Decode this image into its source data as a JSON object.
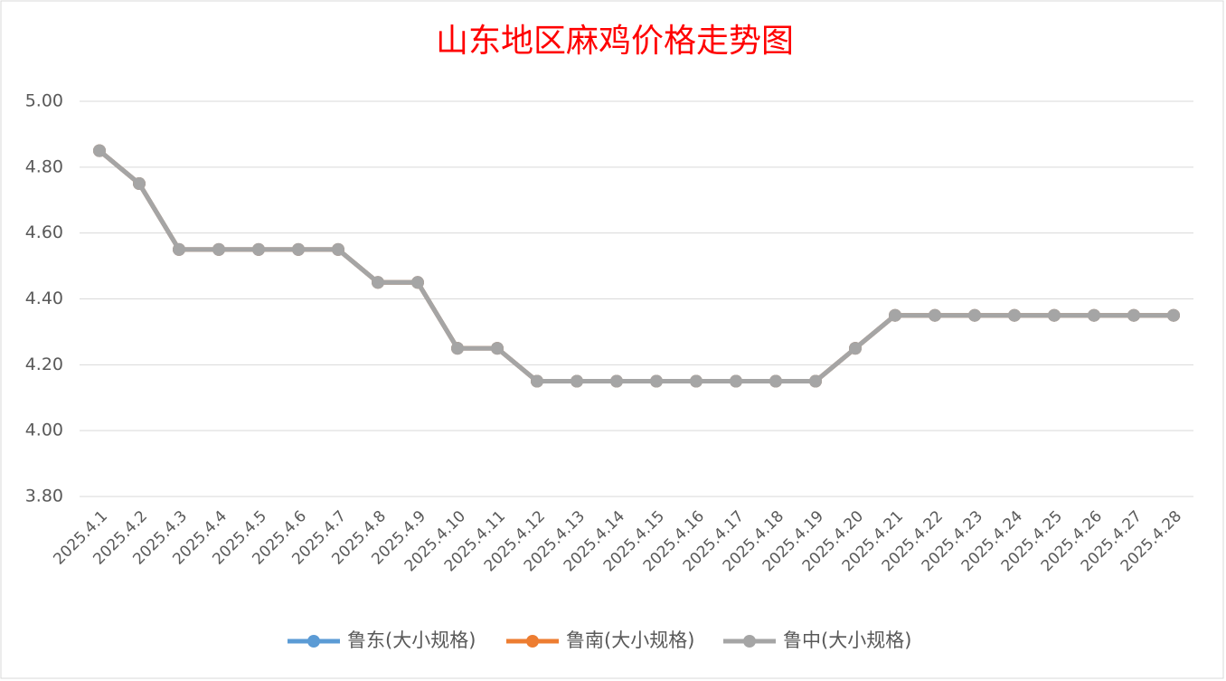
{
  "chart_data": {
    "type": "line",
    "title": "山东地区麻鸡价格走势图",
    "categories": [
      "2025.4.1",
      "2025.4.2",
      "2025.4.3",
      "2025.4.4",
      "2025.4.5",
      "2025.4.6",
      "2025.4.7",
      "2025.4.8",
      "2025.4.9",
      "2025.4.10",
      "2025.4.11",
      "2025.4.12",
      "2025.4.13",
      "2025.4.14",
      "2025.4.15",
      "2025.4.16",
      "2025.4.17",
      "2025.4.18",
      "2025.4.19",
      "2025.4.20",
      "2025.4.21",
      "2025.4.22",
      "2025.4.23",
      "2025.4.24",
      "2025.4.25",
      "2025.4.26",
      "2025.4.27",
      "2025.4.28"
    ],
    "series": [
      {
        "name": "鲁东(大小规格)",
        "color": "#5b9bd5",
        "values": [
          4.85,
          4.75,
          4.55,
          4.55,
          4.55,
          4.55,
          4.55,
          4.45,
          4.45,
          4.25,
          4.25,
          4.15,
          4.15,
          4.15,
          4.15,
          4.15,
          4.15,
          4.15,
          4.15,
          4.25,
          4.35,
          4.35,
          4.35,
          4.35,
          4.35,
          4.35,
          4.35,
          4.35
        ]
      },
      {
        "name": "鲁南(大小规格)",
        "color": "#ed7d31",
        "values": [
          4.85,
          4.75,
          4.55,
          4.55,
          4.55,
          4.55,
          4.55,
          4.45,
          4.45,
          4.25,
          4.25,
          4.15,
          4.15,
          4.15,
          4.15,
          4.15,
          4.15,
          4.15,
          4.15,
          4.25,
          4.35,
          4.35,
          4.35,
          4.35,
          4.35,
          4.35,
          4.35,
          4.35
        ]
      },
      {
        "name": "鲁中(大小规格)",
        "color": "#a5a5a5",
        "values": [
          4.85,
          4.75,
          4.55,
          4.55,
          4.55,
          4.55,
          4.55,
          4.45,
          4.45,
          4.25,
          4.25,
          4.15,
          4.15,
          4.15,
          4.15,
          4.15,
          4.15,
          4.15,
          4.15,
          4.25,
          4.35,
          4.35,
          4.35,
          4.35,
          4.35,
          4.35,
          4.35,
          4.35
        ]
      }
    ],
    "ylim": [
      3.8,
      5.0
    ],
    "yticks": [
      {
        "value": 3.8,
        "label": "3.80"
      },
      {
        "value": 4.0,
        "label": "4.00"
      },
      {
        "value": 4.2,
        "label": "4.20"
      },
      {
        "value": 4.4,
        "label": "4.40"
      },
      {
        "value": 4.6,
        "label": "4.60"
      },
      {
        "value": 4.8,
        "label": "4.80"
      },
      {
        "value": 5.0,
        "label": "5.00"
      }
    ],
    "grid": true,
    "legend": "bottom"
  }
}
